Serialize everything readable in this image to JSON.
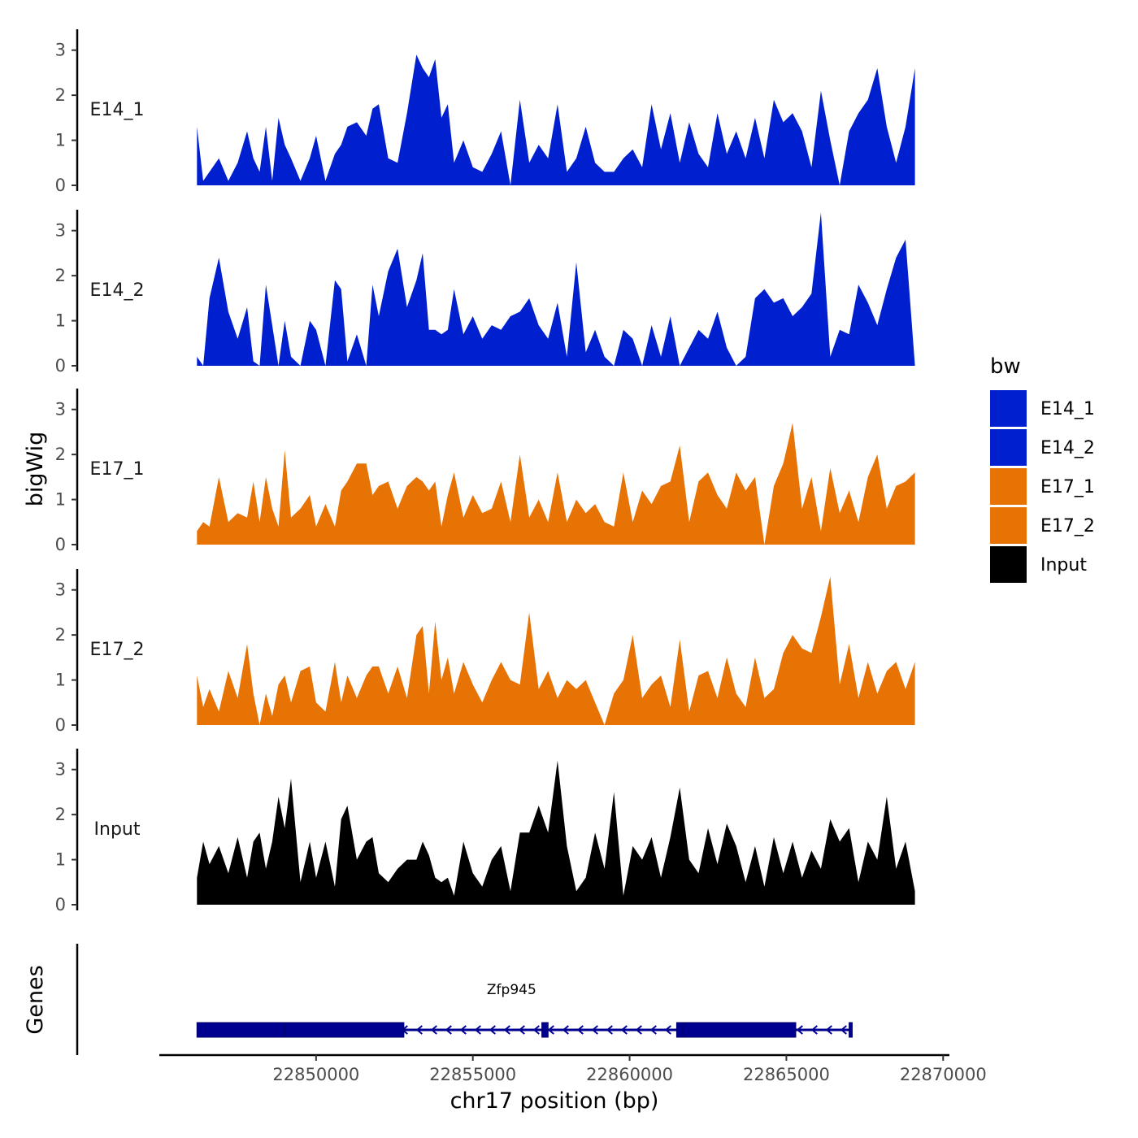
{
  "chart_data": {
    "type": "area",
    "title": "",
    "xlabel": "chr17 position (bp)",
    "ylabel": "bigWig",
    "genes_label": "Genes",
    "xlim": [
      22845000,
      22870200
    ],
    "x_ticks": [
      22850000,
      22855000,
      22860000,
      22865000,
      22870000
    ],
    "x_tick_labels": [
      "22850000",
      "22855000",
      "22860000",
      "22865000",
      "22870000"
    ],
    "ylim": [
      0,
      3.5
    ],
    "y_ticks": [
      0,
      1,
      2,
      3
    ],
    "y_tick_labels": [
      "0",
      "1",
      "2",
      "3"
    ],
    "legend": {
      "title": "bw",
      "entries": [
        {
          "label": "E14_1",
          "color": "#0020d0"
        },
        {
          "label": "E14_2",
          "color": "#0020d0"
        },
        {
          "label": "E17_1",
          "color": "#e87305"
        },
        {
          "label": "E17_2",
          "color": "#e87305"
        },
        {
          "label": "Input",
          "color": "#000000"
        }
      ]
    },
    "series": [
      {
        "name": "E14_1",
        "color": "#0020d0",
        "x": [
          22846200,
          22846400,
          22846600,
          22846900,
          22847200,
          22847500,
          22847800,
          22848000,
          22848200,
          22848400,
          22848600,
          22848800,
          22849000,
          22849200,
          22849500,
          22849800,
          22850000,
          22850300,
          22850600,
          22850800,
          22851000,
          22851300,
          22851600,
          22851800,
          22852000,
          22852300,
          22852600,
          22852900,
          22853200,
          22853400,
          22853600,
          22853800,
          22854000,
          22854200,
          22854400,
          22854700,
          22855000,
          22855300,
          22855600,
          22855900,
          22856200,
          22856500,
          22856800,
          22857100,
          22857400,
          22857700,
          22858000,
          22858300,
          22858600,
          22858900,
          22859200,
          22859500,
          22859800,
          22860100,
          22860400,
          22860700,
          22861000,
          22861300,
          22861600,
          22861900,
          22862200,
          22862500,
          22862800,
          22863100,
          22863400,
          22863700,
          22864000,
          22864300,
          22864600,
          22864900,
          22865200,
          22865500,
          22865800,
          22866100,
          22866400,
          22866700,
          22867000,
          22867300,
          22867600,
          22867900,
          22868200,
          22868500,
          22868800,
          22869100
        ],
        "y": [
          1.3,
          0.1,
          0.3,
          0.6,
          0.1,
          0.5,
          1.2,
          0.6,
          0.3,
          1.3,
          0.1,
          1.5,
          0.9,
          0.6,
          0.1,
          0.6,
          1.1,
          0.1,
          0.7,
          0.9,
          1.3,
          1.4,
          1.1,
          1.7,
          1.8,
          0.6,
          0.5,
          1.6,
          2.9,
          2.6,
          2.4,
          2.8,
          1.5,
          1.8,
          0.5,
          1.0,
          0.4,
          0.3,
          0.7,
          1.2,
          0.0,
          1.9,
          0.5,
          0.9,
          0.6,
          1.8,
          0.3,
          0.6,
          1.3,
          0.5,
          0.3,
          0.3,
          0.6,
          0.8,
          0.4,
          1.8,
          0.8,
          1.6,
          0.5,
          1.4,
          0.7,
          0.4,
          1.6,
          0.7,
          1.2,
          0.6,
          1.5,
          0.6,
          1.9,
          1.4,
          1.6,
          1.2,
          0.4,
          2.1,
          1.0,
          0.0,
          1.2,
          1.6,
          1.9,
          2.6,
          1.3,
          0.5,
          1.3,
          2.6
        ]
      },
      {
        "name": "E14_2",
        "color": "#0020d0",
        "x": [
          22846200,
          22846400,
          22846600,
          22846900,
          22847200,
          22847500,
          22847800,
          22848000,
          22848200,
          22848400,
          22848600,
          22848800,
          22849000,
          22849200,
          22849500,
          22849800,
          22850000,
          22850300,
          22850600,
          22850800,
          22851000,
          22851300,
          22851600,
          22851800,
          22852000,
          22852300,
          22852600,
          22852900,
          22853200,
          22853400,
          22853600,
          22853800,
          22854000,
          22854200,
          22854400,
          22854700,
          22855000,
          22855300,
          22855600,
          22855900,
          22856200,
          22856500,
          22856800,
          22857100,
          22857400,
          22857700,
          22858000,
          22858300,
          22858600,
          22858900,
          22859200,
          22859500,
          22859800,
          22860100,
          22860400,
          22860700,
          22861000,
          22861300,
          22861600,
          22861900,
          22862200,
          22862500,
          22862800,
          22863100,
          22863400,
          22863700,
          22864000,
          22864300,
          22864600,
          22864900,
          22865200,
          22865500,
          22865800,
          22866100,
          22866400,
          22866700,
          22867000,
          22867300,
          22867600,
          22867900,
          22868200,
          22868500,
          22868800,
          22869100
        ],
        "y": [
          0.2,
          0.0,
          1.5,
          2.4,
          1.2,
          0.6,
          1.3,
          0.1,
          0.0,
          1.8,
          0.9,
          0.0,
          1.0,
          0.2,
          0.0,
          1.0,
          0.8,
          0.0,
          1.9,
          1.7,
          0.1,
          0.7,
          0.0,
          1.8,
          1.1,
          2.1,
          2.6,
          1.3,
          1.9,
          2.5,
          0.8,
          0.8,
          0.7,
          0.8,
          1.7,
          0.7,
          1.1,
          0.6,
          0.9,
          0.8,
          1.1,
          1.2,
          1.5,
          0.9,
          0.6,
          1.4,
          0.2,
          2.3,
          0.3,
          0.8,
          0.2,
          0.0,
          0.8,
          0.6,
          0.0,
          0.9,
          0.2,
          1.1,
          0.0,
          0.4,
          0.8,
          0.6,
          1.2,
          0.4,
          0.0,
          0.2,
          1.5,
          1.7,
          1.4,
          1.5,
          1.1,
          1.3,
          1.6,
          3.4,
          0.2,
          0.8,
          0.7,
          1.8,
          1.4,
          0.9,
          1.7,
          2.4,
          2.8,
          0.0
        ]
      },
      {
        "name": "E17_1",
        "color": "#e87305",
        "x": [
          22846200,
          22846400,
          22846600,
          22846900,
          22847200,
          22847500,
          22847800,
          22848000,
          22848200,
          22848400,
          22848600,
          22848800,
          22849000,
          22849200,
          22849500,
          22849800,
          22850000,
          22850300,
          22850600,
          22850800,
          22851000,
          22851300,
          22851600,
          22851800,
          22852000,
          22852300,
          22852600,
          22852900,
          22853200,
          22853400,
          22853600,
          22853800,
          22854000,
          22854200,
          22854400,
          22854700,
          22855000,
          22855300,
          22855600,
          22855900,
          22856200,
          22856500,
          22856800,
          22857100,
          22857400,
          22857700,
          22858000,
          22858300,
          22858600,
          22858900,
          22859200,
          22859500,
          22859800,
          22860100,
          22860400,
          22860700,
          22861000,
          22861300,
          22861600,
          22861900,
          22862200,
          22862500,
          22862800,
          22863100,
          22863400,
          22863700,
          22864000,
          22864300,
          22864600,
          22864900,
          22865200,
          22865500,
          22865800,
          22866100,
          22866400,
          22866700,
          22867000,
          22867300,
          22867600,
          22867900,
          22868200,
          22868500,
          22868800,
          22869100
        ],
        "y": [
          0.3,
          0.5,
          0.4,
          1.5,
          0.5,
          0.7,
          0.6,
          1.4,
          0.5,
          1.5,
          0.8,
          0.4,
          2.1,
          0.6,
          0.8,
          1.1,
          0.4,
          0.9,
          0.4,
          1.2,
          1.4,
          1.8,
          1.8,
          1.1,
          1.3,
          1.4,
          0.8,
          1.3,
          1.5,
          1.4,
          1.2,
          1.4,
          0.4,
          1.1,
          1.6,
          0.6,
          1.1,
          0.7,
          0.8,
          1.4,
          0.5,
          2.0,
          0.6,
          1.0,
          0.5,
          1.6,
          0.5,
          1.0,
          0.7,
          0.9,
          0.5,
          0.4,
          1.6,
          0.5,
          1.2,
          0.9,
          1.3,
          1.4,
          2.2,
          0.5,
          1.4,
          1.6,
          1.1,
          0.8,
          1.6,
          1.2,
          1.5,
          0.0,
          1.3,
          1.8,
          2.7,
          0.8,
          1.5,
          0.3,
          1.7,
          0.7,
          1.2,
          0.5,
          1.5,
          2.0,
          0.8,
          1.3,
          1.4,
          1.6
        ]
      },
      {
        "name": "E17_2",
        "color": "#e87305",
        "x": [
          22846200,
          22846400,
          22846600,
          22846900,
          22847200,
          22847500,
          22847800,
          22848000,
          22848200,
          22848400,
          22848600,
          22848800,
          22849000,
          22849200,
          22849500,
          22849800,
          22850000,
          22850300,
          22850600,
          22850800,
          22851000,
          22851300,
          22851600,
          22851800,
          22852000,
          22852300,
          22852600,
          22852900,
          22853200,
          22853400,
          22853600,
          22853800,
          22854000,
          22854200,
          22854400,
          22854700,
          22855000,
          22855300,
          22855600,
          22855900,
          22856200,
          22856500,
          22856800,
          22857100,
          22857400,
          22857700,
          22858000,
          22858300,
          22858600,
          22858900,
          22859200,
          22859500,
          22859800,
          22860100,
          22860400,
          22860700,
          22861000,
          22861300,
          22861600,
          22861900,
          22862200,
          22862500,
          22862800,
          22863100,
          22863400,
          22863700,
          22864000,
          22864300,
          22864600,
          22864900,
          22865200,
          22865500,
          22865800,
          22866100,
          22866400,
          22866700,
          22867000,
          22867300,
          22867600,
          22867900,
          22868200,
          22868500,
          22868800,
          22869100
        ],
        "y": [
          1.1,
          0.4,
          0.8,
          0.3,
          1.2,
          0.6,
          1.8,
          0.7,
          0.0,
          0.7,
          0.2,
          0.9,
          1.1,
          0.5,
          1.2,
          1.3,
          0.5,
          0.3,
          1.4,
          0.5,
          1.1,
          0.6,
          1.1,
          1.3,
          1.3,
          0.7,
          1.3,
          0.6,
          2.0,
          2.2,
          0.7,
          2.3,
          1.0,
          1.5,
          0.7,
          1.4,
          0.9,
          0.5,
          1.0,
          1.4,
          1.0,
          0.9,
          2.5,
          0.8,
          1.2,
          0.6,
          1.0,
          0.8,
          1.0,
          0.5,
          0.0,
          0.7,
          1.0,
          2.0,
          0.6,
          0.9,
          1.1,
          0.4,
          1.9,
          0.3,
          1.1,
          1.2,
          0.6,
          1.5,
          0.7,
          0.4,
          1.5,
          0.6,
          0.8,
          1.6,
          2.0,
          1.7,
          1.6,
          2.4,
          3.3,
          0.9,
          1.8,
          0.6,
          1.4,
          0.7,
          1.2,
          1.4,
          0.8,
          1.4
        ]
      },
      {
        "name": "Input",
        "color": "#000000",
        "x": [
          22846200,
          22846400,
          22846600,
          22846900,
          22847200,
          22847500,
          22847800,
          22848000,
          22848200,
          22848400,
          22848600,
          22848800,
          22849000,
          22849200,
          22849500,
          22849800,
          22850000,
          22850300,
          22850600,
          22850800,
          22851000,
          22851300,
          22851600,
          22851800,
          22852000,
          22852300,
          22852600,
          22852900,
          22853200,
          22853400,
          22853600,
          22853800,
          22854000,
          22854200,
          22854400,
          22854700,
          22855000,
          22855300,
          22855600,
          22855900,
          22856200,
          22856500,
          22856800,
          22857100,
          22857400,
          22857700,
          22858000,
          22858300,
          22858600,
          22858900,
          22859200,
          22859500,
          22859800,
          22860100,
          22860400,
          22860700,
          22861000,
          22861300,
          22861600,
          22861900,
          22862200,
          22862500,
          22862800,
          22863100,
          22863400,
          22863700,
          22864000,
          22864300,
          22864600,
          22864900,
          22865200,
          22865500,
          22865800,
          22866100,
          22866400,
          22866700,
          22867000,
          22867300,
          22867600,
          22867900,
          22868200,
          22868500,
          22868800,
          22869100
        ],
        "y": [
          0.6,
          1.4,
          0.9,
          1.3,
          0.7,
          1.5,
          0.6,
          1.4,
          1.6,
          0.8,
          1.4,
          2.4,
          1.7,
          2.8,
          0.5,
          1.4,
          0.6,
          1.4,
          0.4,
          1.9,
          2.2,
          1.0,
          1.4,
          1.5,
          0.7,
          0.5,
          0.8,
          1.0,
          1.0,
          1.4,
          1.1,
          0.6,
          0.5,
          0.6,
          0.2,
          1.4,
          0.7,
          0.4,
          1.0,
          1.3,
          0.3,
          1.6,
          1.6,
          2.2,
          1.6,
          3.2,
          1.3,
          0.3,
          0.6,
          1.6,
          0.8,
          2.5,
          0.2,
          1.3,
          1.0,
          1.5,
          0.6,
          1.5,
          2.6,
          1.0,
          0.7,
          1.7,
          0.9,
          1.8,
          1.3,
          0.5,
          1.3,
          0.4,
          1.5,
          0.7,
          1.4,
          0.6,
          1.2,
          0.8,
          1.9,
          1.4,
          1.7,
          0.5,
          1.4,
          1.0,
          2.4,
          0.8,
          1.4,
          0.3
        ]
      }
    ],
    "genes": [
      {
        "name": "Zfp945",
        "strand": "-",
        "start": 22846200,
        "end": 22867100,
        "exons": [
          [
            22846200,
            22849000
          ],
          [
            22849000,
            22852800
          ],
          [
            22857200,
            22857400
          ],
          [
            22861500,
            22861700
          ],
          [
            22861700,
            22865300
          ],
          [
            22867000,
            22867100
          ]
        ]
      }
    ]
  }
}
